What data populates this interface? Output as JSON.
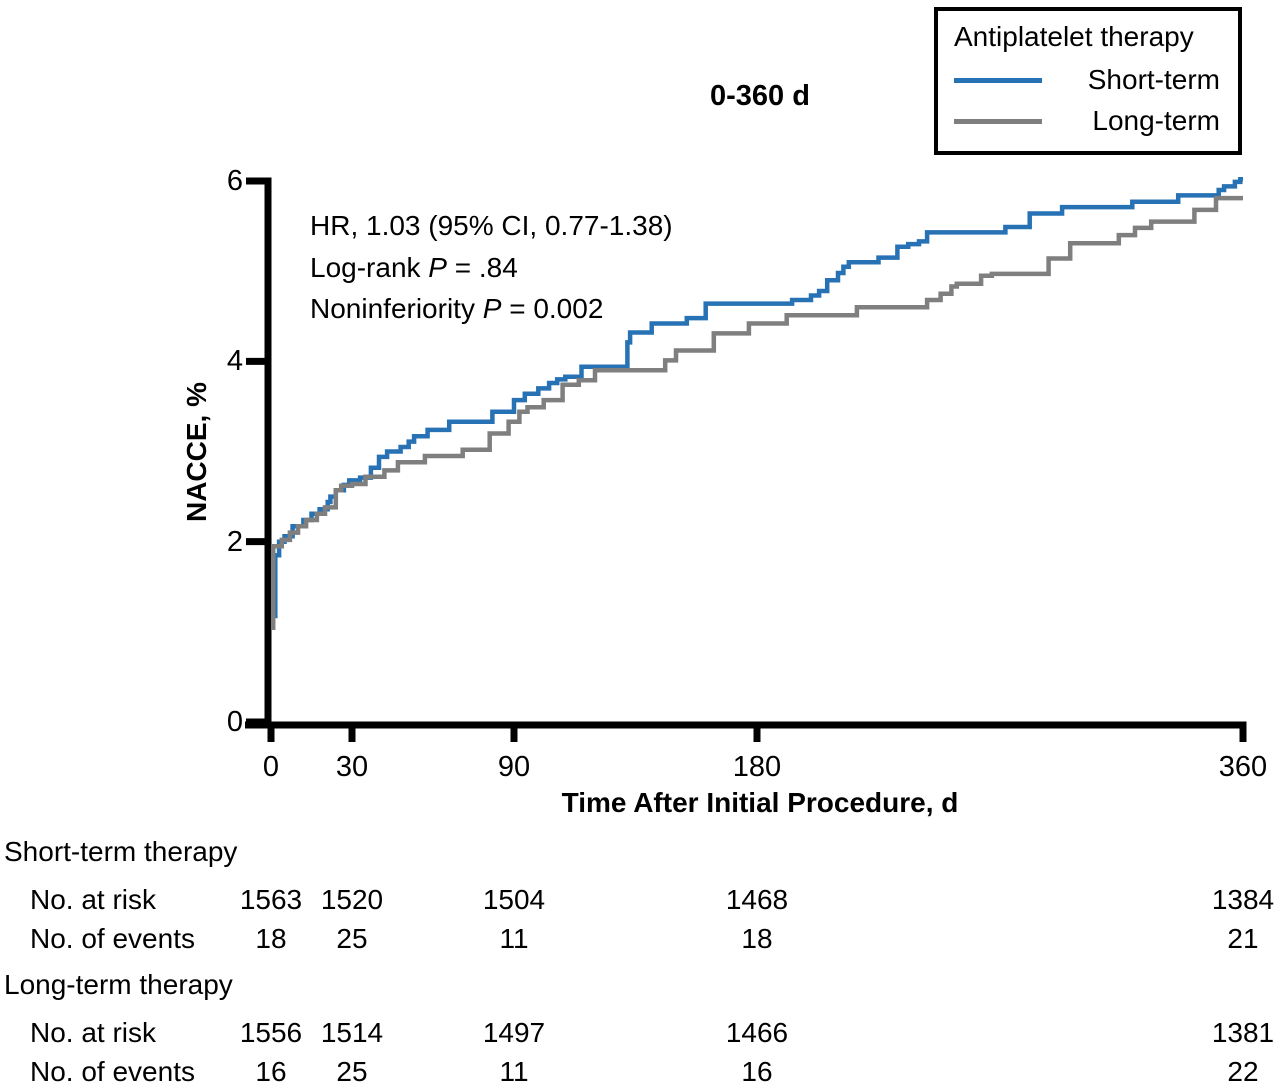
{
  "chart_data": {
    "type": "line",
    "subtype": "kaplan-meier-step",
    "title": "0-360 d",
    "xlabel": "Time After Initial Procedure, d",
    "ylabel": "NACCE, %",
    "xlim": [
      0,
      360
    ],
    "ylim": [
      0,
      6
    ],
    "x_ticks": [
      0,
      30,
      90,
      180,
      360
    ],
    "y_ticks": [
      0,
      2,
      4,
      6
    ],
    "grid": false,
    "legend": {
      "title": "Antiplatelet therapy",
      "position": "top-right"
    },
    "annotations": [
      {
        "pre": "HR, 1.03 (95% CI, 0.77-1.38)",
        "italic": "",
        "post": ""
      },
      {
        "pre": "Log-rank ",
        "italic": "P",
        "post": " = .84"
      },
      {
        "pre": "Noninferiority ",
        "italic": "P",
        "post": " = 0.002"
      }
    ],
    "series": [
      {
        "name": "Short-term",
        "color": "#2772B5",
        "step": true,
        "points": [
          [
            1.6,
            1.15
          ],
          [
            1.6,
            1.85
          ],
          [
            3,
            2.0
          ],
          [
            5,
            2.06
          ],
          [
            8,
            2.17
          ],
          [
            12,
            2.24
          ],
          [
            15,
            2.31
          ],
          [
            18,
            2.36
          ],
          [
            21,
            2.44
          ],
          [
            22,
            2.5
          ],
          [
            24,
            2.57
          ],
          [
            27,
            2.63
          ],
          [
            29,
            2.68
          ],
          [
            33,
            2.71
          ],
          [
            37,
            2.82
          ],
          [
            40,
            2.94
          ],
          [
            43,
            3.0
          ],
          [
            48,
            3.05
          ],
          [
            51,
            3.11
          ],
          [
            53,
            3.17
          ],
          [
            58,
            3.24
          ],
          [
            66,
            3.33
          ],
          [
            82,
            3.44
          ],
          [
            90,
            3.57
          ],
          [
            94,
            3.64
          ],
          [
            99,
            3.7
          ],
          [
            103,
            3.76
          ],
          [
            106,
            3.8
          ],
          [
            109,
            3.83
          ],
          [
            115,
            3.94
          ],
          [
            132,
            4.21
          ],
          [
            133,
            4.32
          ],
          [
            141,
            4.42
          ],
          [
            154,
            4.48
          ],
          [
            161,
            4.64
          ],
          [
            193,
            4.68
          ],
          [
            200,
            4.73
          ],
          [
            203,
            4.78
          ],
          [
            206,
            4.9
          ],
          [
            210,
            4.98
          ],
          [
            212,
            5.05
          ],
          [
            214,
            5.1
          ],
          [
            225,
            5.15
          ],
          [
            232,
            5.27
          ],
          [
            236,
            5.3
          ],
          [
            240,
            5.33
          ],
          [
            243,
            5.43
          ],
          [
            272,
            5.49
          ],
          [
            281,
            5.64
          ],
          [
            293,
            5.71
          ],
          [
            319,
            5.77
          ],
          [
            336,
            5.84
          ],
          [
            351,
            5.9
          ],
          [
            353,
            5.94
          ],
          [
            357,
            5.99
          ],
          [
            359,
            6.02
          ]
        ]
      },
      {
        "name": "Long-term",
        "color": "#7F7F7F",
        "step": true,
        "points": [
          [
            0.8,
            1.02
          ],
          [
            0.8,
            1.95
          ],
          [
            4,
            2.02
          ],
          [
            7,
            2.1
          ],
          [
            10,
            2.17
          ],
          [
            13,
            2.24
          ],
          [
            17,
            2.31
          ],
          [
            20,
            2.38
          ],
          [
            24,
            2.57
          ],
          [
            26,
            2.62
          ],
          [
            30,
            2.64
          ],
          [
            35,
            2.72
          ],
          [
            42,
            2.79
          ],
          [
            47,
            2.88
          ],
          [
            57,
            2.95
          ],
          [
            71,
            3.02
          ],
          [
            81,
            3.2
          ],
          [
            88,
            3.33
          ],
          [
            92,
            3.44
          ],
          [
            95,
            3.49
          ],
          [
            101,
            3.57
          ],
          [
            108,
            3.74
          ],
          [
            114,
            3.79
          ],
          [
            120,
            3.9
          ],
          [
            146,
            4.01
          ],
          [
            150,
            4.12
          ],
          [
            164,
            4.31
          ],
          [
            177,
            4.42
          ],
          [
            191,
            4.51
          ],
          [
            217,
            4.6
          ],
          [
            243,
            4.68
          ],
          [
            248,
            4.75
          ],
          [
            252,
            4.83
          ],
          [
            254,
            4.86
          ],
          [
            263,
            4.95
          ],
          [
            267,
            4.97
          ],
          [
            288,
            5.14
          ],
          [
            296,
            5.31
          ],
          [
            314,
            5.4
          ],
          [
            320,
            5.48
          ],
          [
            326,
            5.55
          ],
          [
            342,
            5.68
          ],
          [
            350,
            5.81
          ],
          [
            360,
            5.81
          ]
        ]
      }
    ]
  },
  "risk_table": {
    "groups": [
      {
        "label": "Short-term therapy",
        "rows": [
          {
            "label": "No. at risk",
            "values": [
              "1563",
              "1520",
              "1504",
              "1468",
              "1384"
            ]
          },
          {
            "label": "No. of events",
            "values": [
              "18",
              "25",
              "11",
              "18",
              "21"
            ]
          }
        ]
      },
      {
        "label": "Long-term therapy",
        "rows": [
          {
            "label": "No. at risk",
            "values": [
              "1556",
              "1514",
              "1497",
              "1466",
              "1381"
            ]
          },
          {
            "label": "No. of events",
            "values": [
              "16",
              "25",
              "11",
              "16",
              "22"
            ]
          }
        ]
      }
    ]
  }
}
